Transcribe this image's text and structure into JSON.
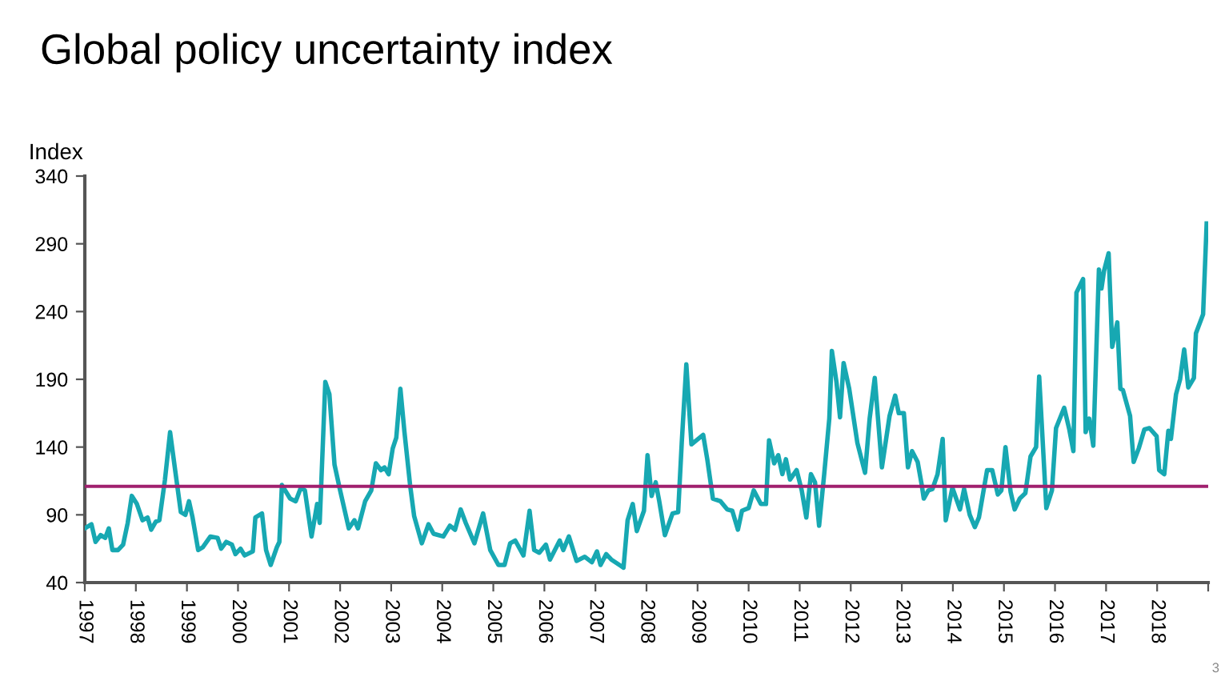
{
  "chart_data": {
    "type": "line",
    "title": "Global policy uncertainty index",
    "ylabel": "Index",
    "annotations": [
      "3"
    ],
    "xlim": [
      1997,
      2019
    ],
    "xticks": [
      1997,
      1998,
      1999,
      2000,
      2001,
      2002,
      2003,
      2004,
      2005,
      2006,
      2007,
      2008,
      2009,
      2010,
      2011,
      2012,
      2013,
      2014,
      2015,
      2016,
      2017,
      2018,
      {
        "value": 2019,
        "label": null
      }
    ],
    "ylim": [
      40,
      340
    ],
    "yticks": [
      40,
      90,
      140,
      190,
      240,
      290,
      340
    ],
    "grid": false,
    "legend": false,
    "ref_lines": [
      {
        "axis": "y",
        "value": 111,
        "color": "#a0206e"
      }
    ],
    "series": [
      {
        "color": "#17a8b2",
        "x": [
          1997.0,
          1997.13,
          1997.21,
          1997.31,
          1997.4,
          1997.47,
          1997.54,
          1997.65,
          1997.75,
          1997.84,
          1997.92,
          1998.02,
          1998.13,
          1998.23,
          1998.3,
          1998.39,
          1998.46,
          1998.57,
          1998.67,
          1998.78,
          1998.88,
          1998.97,
          1999.04,
          1999.11,
          1999.22,
          1999.31,
          1999.46,
          1999.6,
          1999.67,
          1999.77,
          1999.88,
          1999.95,
          2000.05,
          2000.13,
          2000.29,
          2000.34,
          2000.47,
          2000.55,
          2000.64,
          2000.76,
          2000.81,
          2000.86,
          2001.02,
          2001.13,
          2001.23,
          2001.31,
          2001.44,
          2001.55,
          2001.6,
          2001.71,
          2001.79,
          2001.89,
          2002.0,
          2002.17,
          2002.28,
          2002.35,
          2002.49,
          2002.61,
          2002.7,
          2002.8,
          2002.87,
          2002.95,
          2003.03,
          2003.1,
          2003.18,
          2003.26,
          2003.37,
          2003.45,
          2003.6,
          2003.73,
          2003.83,
          2004.02,
          2004.15,
          2004.25,
          2004.36,
          2004.46,
          2004.63,
          2004.8,
          2004.94,
          2005.1,
          2005.22,
          2005.33,
          2005.43,
          2005.59,
          2005.71,
          2005.8,
          2005.9,
          2006.03,
          2006.11,
          2006.3,
          2006.37,
          2006.48,
          2006.63,
          2006.79,
          2006.93,
          2007.03,
          2007.1,
          2007.21,
          2007.31,
          2007.47,
          2007.55,
          2007.63,
          2007.73,
          2007.81,
          2007.95,
          2008.02,
          2008.1,
          2008.18,
          2008.25,
          2008.36,
          2008.51,
          2008.62,
          2008.69,
          2008.78,
          2008.88,
          2008.98,
          2009.11,
          2009.19,
          2009.3,
          2009.45,
          2009.58,
          2009.68,
          2009.79,
          2009.87,
          2010.0,
          2010.1,
          2010.24,
          2010.34,
          2010.4,
          2010.5,
          2010.58,
          2010.66,
          2010.73,
          2010.81,
          2010.94,
          2011.04,
          2011.13,
          2011.22,
          2011.3,
          2011.38,
          2011.48,
          2011.58,
          2011.63,
          2011.72,
          2011.79,
          2011.86,
          2011.97,
          2012.13,
          2012.28,
          2012.37,
          2012.47,
          2012.61,
          2012.76,
          2012.87,
          2012.94,
          2013.04,
          2013.12,
          2013.2,
          2013.31,
          2013.39,
          2013.43,
          2013.52,
          2013.6,
          2013.7,
          2013.8,
          2013.86,
          2013.99,
          2014.14,
          2014.22,
          2014.33,
          2014.43,
          2014.51,
          2014.67,
          2014.77,
          2014.88,
          2014.95,
          2015.03,
          2015.13,
          2015.21,
          2015.31,
          2015.42,
          2015.52,
          2015.63,
          2015.69,
          2015.83,
          2015.94,
          2016.02,
          2016.18,
          2016.28,
          2016.36,
          2016.42,
          2016.55,
          2016.6,
          2016.67,
          2016.75,
          2016.86,
          2016.91,
          2016.96,
          2017.05,
          2017.12,
          2017.22,
          2017.28,
          2017.33,
          2017.47,
          2017.54,
          2017.64,
          2017.75,
          2017.85,
          2017.99,
          2018.04,
          2018.14,
          2018.22,
          2018.27,
          2018.37,
          2018.45,
          2018.53,
          2018.61,
          2018.72,
          2018.76,
          2018.9,
          2018.97
        ],
        "values": [
          80,
          83,
          70,
          75,
          73,
          80,
          64,
          64,
          68,
          84,
          104,
          98,
          86,
          88,
          79,
          85,
          86,
          116,
          151,
          120,
          92,
          90,
          100,
          88,
          64,
          66,
          74,
          73,
          65,
          70,
          68,
          61,
          65,
          60,
          63,
          88,
          91,
          64,
          53,
          66,
          70,
          112,
          102,
          100,
          110,
          108,
          74,
          98,
          84,
          188,
          179,
          127,
          108,
          80,
          86,
          80,
          100,
          108,
          128,
          123,
          125,
          120,
          139,
          147,
          183,
          151,
          112,
          89,
          69,
          83,
          76,
          74,
          82,
          79,
          94,
          84,
          69,
          91,
          64,
          53,
          53,
          69,
          71,
          60,
          93,
          64,
          62,
          68,
          57,
          71,
          64,
          74,
          56,
          59,
          55,
          63,
          53,
          61,
          57,
          53,
          51,
          86,
          98,
          78,
          93,
          134,
          104,
          114,
          100,
          75,
          91,
          92,
          143,
          201,
          142,
          145,
          149,
          131,
          102,
          100,
          94,
          93,
          79,
          93,
          95,
          108,
          98,
          98,
          145,
          128,
          134,
          120,
          131,
          116,
          123,
          108,
          88,
          120,
          114,
          82,
          120,
          161,
          211,
          188,
          162,
          202,
          183,
          143,
          121,
          161,
          191,
          125,
          163,
          178,
          165,
          165,
          125,
          137,
          129,
          112,
          102,
          108,
          109,
          120,
          146,
          86,
          110,
          94,
          109,
          90,
          81,
          88,
          123,
          123,
          105,
          108,
          140,
          107,
          94,
          102,
          106,
          133,
          140,
          192,
          95,
          108,
          154,
          169,
          153,
          137,
          254,
          264,
          151,
          161,
          141,
          271,
          257,
          270,
          283,
          214,
          232,
          183,
          182,
          163,
          129,
          139,
          153,
          154,
          148,
          123,
          120,
          152,
          146,
          179,
          190,
          212,
          184,
          191,
          224,
          238,
          305
        ]
      }
    ]
  }
}
